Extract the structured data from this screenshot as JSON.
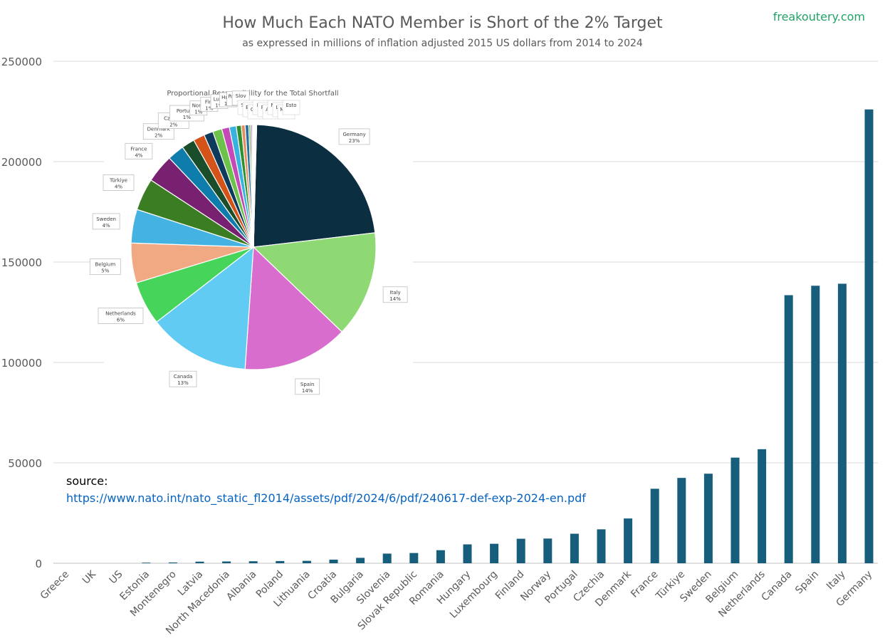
{
  "brand": "freakoutery.com",
  "chart_data": [
    {
      "type": "bar",
      "title": "How Much Each NATO Member is Short of the 2% Target",
      "subtitle": "as expressed in millions of inflation adjusted 2015 US dollars from 2014 to 2024",
      "xlabel": "",
      "ylabel": "",
      "ylim": [
        0,
        250000
      ],
      "yticks": [
        0,
        50000,
        100000,
        150000,
        200000,
        250000
      ],
      "grid": true,
      "bar_color": "#175d7c",
      "categories": [
        "Greece",
        "UK",
        "US",
        "Estonia",
        "Montenegro",
        "Latvia",
        "North Macedonia",
        "Albania",
        "Poland",
        "Lithuania",
        "Croatia",
        "Bulgaria",
        "Slovenia",
        "Slovak Republic",
        "Romania",
        "Hungary",
        "Luxembourg",
        "Finland",
        "Norway",
        "Portugal",
        "Czechia",
        "Denmark",
        "France",
        "Türkiye",
        "Sweden",
        "Belgium",
        "Netherlands",
        "Canada",
        "Spain",
        "Italy",
        "Germany"
      ],
      "values": [
        0,
        0,
        0,
        300,
        400,
        800,
        900,
        1000,
        1100,
        1200,
        1800,
        2700,
        4800,
        5100,
        6500,
        9400,
        9700,
        12200,
        12300,
        14700,
        16900,
        22300,
        37100,
        42500,
        44600,
        52600,
        56800,
        133500,
        138200,
        139200,
        226000
      ]
    },
    {
      "type": "pie",
      "title": "Proportional Responsibility for the Total Shortfall",
      "slices": [
        {
          "label": "Germany",
          "percent": "23%",
          "value": 22.5,
          "color": "#0c2e41"
        },
        {
          "label": "Italy",
          "percent": "14%",
          "value": 13.9,
          "color": "#8ed973"
        },
        {
          "label": "Spain",
          "percent": "14%",
          "value": 13.8,
          "color": "#d86dcd"
        },
        {
          "label": "Canada",
          "percent": "13%",
          "value": 13.3,
          "color": "#61cbf3"
        },
        {
          "label": "Netherlands",
          "percent": "6%",
          "value": 5.7,
          "color": "#47d45a"
        },
        {
          "label": "Belgium",
          "percent": "5%",
          "value": 5.2,
          "color": "#f1a983"
        },
        {
          "label": "Sweden",
          "percent": "4%",
          "value": 4.4,
          "color": "#44b3e1"
        },
        {
          "label": "Türkiye",
          "percent": "4%",
          "value": 4.2,
          "color": "#3b7d23"
        },
        {
          "label": "France",
          "percent": "4%",
          "value": 3.7,
          "color": "#782170"
        },
        {
          "label": "Denmark",
          "percent": "2%",
          "value": 2.2,
          "color": "#0f7dac"
        },
        {
          "label": "Czechia",
          "percent": "2%",
          "value": 1.7,
          "color": "#1a4d2a"
        },
        {
          "label": "Portugal",
          "percent": "1%",
          "value": 1.5,
          "color": "#d45318"
        },
        {
          "label": "Norway",
          "percent": "1%",
          "value": 1.2,
          "color": "#0e3b5c"
        },
        {
          "label": "Finland",
          "percent": "1%",
          "value": 1.2,
          "color": "#6cc24a"
        },
        {
          "label": "Luxembourg",
          "percent": "1%",
          "value": 1.0,
          "color": "#c44ab8"
        },
        {
          "label": "Hungary",
          "percent": "1%",
          "value": 0.9,
          "color": "#38b3e0"
        },
        {
          "label": "Romania",
          "percent": "1%",
          "value": 0.65,
          "color": "#2f8f2f"
        },
        {
          "label": "Slovak Republic",
          "percent": "1%",
          "value": 0.5,
          "color": "#e08f60"
        },
        {
          "label": "Slovenia",
          "percent": "0%",
          "value": 0.48,
          "color": "#2b6f9e"
        },
        {
          "label": "Bulgaria",
          "percent": "0%",
          "value": 0.27,
          "color": "#7bb661"
        },
        {
          "label": "Croatia",
          "percent": "0%",
          "value": 0.18,
          "color": "#8e3a87"
        },
        {
          "label": "Lithuania",
          "percent": "0%",
          "value": 0.12,
          "color": "#5aa5c9"
        },
        {
          "label": "Poland",
          "percent": "0%",
          "value": 0.11,
          "color": "#4f8a3a"
        },
        {
          "label": "Albania",
          "percent": "0%",
          "value": 0.1,
          "color": "#c27a55"
        },
        {
          "label": "North Macedonia",
          "percent": "0%",
          "value": 0.09,
          "color": "#1f5a7a"
        },
        {
          "label": "Latvia",
          "percent": "0%",
          "value": 0.08,
          "color": "#9bd27f"
        },
        {
          "label": "Montenegro",
          "percent": "0%",
          "value": 0.04,
          "color": "#b45aa8"
        },
        {
          "label": "Estonia",
          "percent": "0%",
          "value": 0.03,
          "color": "#70c0e0"
        }
      ]
    }
  ],
  "source": {
    "label": "source:",
    "url": "https://www.nato.int/nato_static_fl2014/assets/pdf/2024/6/pdf/240617-def-exp-2024-en.pdf"
  }
}
